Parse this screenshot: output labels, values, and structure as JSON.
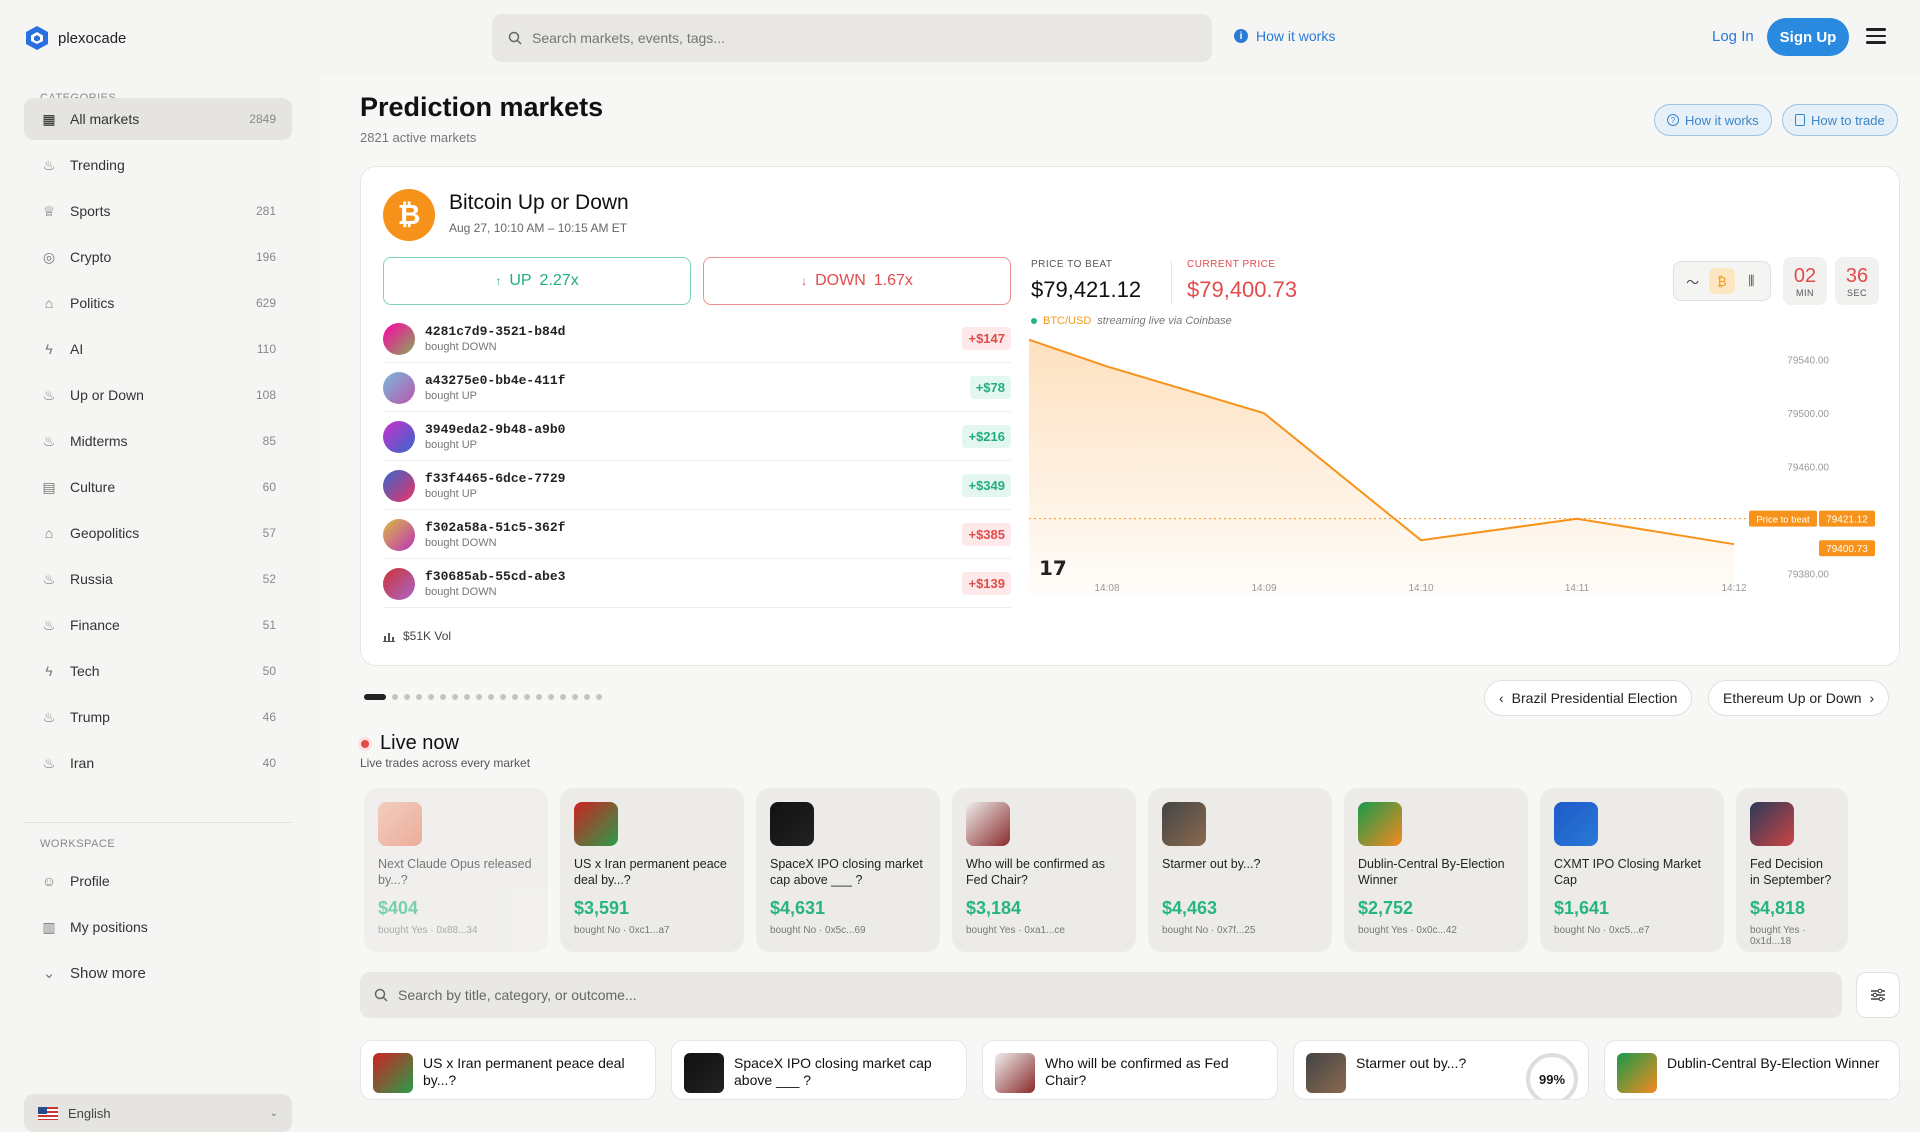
{
  "app": {
    "name": "plexocade"
  },
  "header": {
    "search_placeholder": "Search markets, events, tags...",
    "how_it_works": "How it works",
    "login": "Log In",
    "signup": "Sign Up"
  },
  "sidebar": {
    "categories_label": "CATEGORIES",
    "items": [
      {
        "label": "All markets",
        "count": "2849",
        "icon": "grid-icon"
      },
      {
        "label": "Trending",
        "count": "",
        "icon": "flame-icon"
      },
      {
        "label": "Sports",
        "count": "281",
        "icon": "trophy-icon"
      },
      {
        "label": "Crypto",
        "count": "196",
        "icon": "coins-icon"
      },
      {
        "label": "Politics",
        "count": "629",
        "icon": "landmark-icon"
      },
      {
        "label": "AI",
        "count": "110",
        "icon": "bolt-icon"
      },
      {
        "label": "Up or Down",
        "count": "108",
        "icon": "flame-icon"
      },
      {
        "label": "Midterms",
        "count": "85",
        "icon": "flame-icon"
      },
      {
        "label": "Culture",
        "count": "60",
        "icon": "film-icon"
      },
      {
        "label": "Geopolitics",
        "count": "57",
        "icon": "landmark-icon"
      },
      {
        "label": "Russia",
        "count": "52",
        "icon": "flame-icon"
      },
      {
        "label": "Finance",
        "count": "51",
        "icon": "flame-icon"
      },
      {
        "label": "Tech",
        "count": "50",
        "icon": "bolt-icon"
      },
      {
        "label": "Trump",
        "count": "46",
        "icon": "flame-icon"
      },
      {
        "label": "Iran",
        "count": "40",
        "icon": "flame-icon"
      }
    ],
    "workspace_label": "WORKSPACE",
    "workspace": [
      {
        "label": "Profile",
        "icon": "user-icon"
      },
      {
        "label": "My positions",
        "icon": "bar-chart-icon"
      },
      {
        "label": "Show more",
        "icon": "chevron-down-icon"
      }
    ],
    "language": "English"
  },
  "page": {
    "title": "Prediction markets",
    "subtitle": "2821 active markets",
    "how_it_works": "How it works",
    "how_to_trade": "How to trade"
  },
  "featured": {
    "title": "Bitcoin Up or Down",
    "date": "Aug 27, 10:10 AM – 10:15 AM ET",
    "up_label": "UP",
    "up_mult": "2.27x",
    "down_label": "DOWN",
    "down_mult": "1.67x",
    "trades": [
      {
        "id": "4281c7d9-3521-b84d",
        "action": "bought DOWN",
        "amount": "+$147",
        "side": "down"
      },
      {
        "id": "a43275e0-bb4e-411f",
        "action": "bought UP",
        "amount": "+$78",
        "side": "up"
      },
      {
        "id": "3949eda2-9b48-a9b0",
        "action": "bought UP",
        "amount": "+$216",
        "side": "up"
      },
      {
        "id": "f33f4465-6dce-7729",
        "action": "bought UP",
        "amount": "+$349",
        "side": "up"
      },
      {
        "id": "f302a58a-51c5-362f",
        "action": "bought DOWN",
        "amount": "+$385",
        "side": "down"
      },
      {
        "id": "f30685ab-55cd-abe3",
        "action": "bought DOWN",
        "amount": "+$139",
        "side": "down"
      }
    ],
    "volume": "$51K Vol",
    "price_to_beat_label": "PRICE TO BEAT",
    "price_to_beat": "$79,421.12",
    "current_price_label": "CURRENT PRICE",
    "current_price": "$79,400.73",
    "pair": "BTC/USD",
    "stream_note": "streaming live via Coinbase",
    "timer_min": "02",
    "timer_min_label": "MIN",
    "timer_sec": "36",
    "timer_sec_label": "SEC",
    "ptb_tag": "Price to beat",
    "ptb_tag_value": "79421.12",
    "cur_tag_value": "79400.73"
  },
  "chart_data": {
    "type": "area",
    "x": [
      "14:07.6",
      "14:08",
      "14:09",
      "14:10",
      "14:11",
      "14:12"
    ],
    "xticks": [
      "14:08",
      "14:09",
      "14:10",
      "14:11",
      "14:12"
    ],
    "y": [
      79555,
      79535,
      79500,
      79405,
      79421,
      79402
    ],
    "yticks": [
      "79540.00",
      "79500.00",
      "79460.00",
      "79380.00"
    ],
    "ylim": [
      79380,
      79560
    ],
    "price_to_beat": 79421.12,
    "color": "#f7931a"
  },
  "carousel": {
    "prev": "Brazil Presidential Election",
    "next": "Ethereum Up or Down",
    "dots": 19
  },
  "live": {
    "title": "Live now",
    "subtitle": "Live trades across every market",
    "cards": [
      {
        "q": "Next Claude Opus released by...?",
        "v": "$404",
        "by": "bought Yes · 0x88...34",
        "c1": "#f0b39e",
        "c2": "#e57c5c"
      },
      {
        "q": "US x Iran permanent peace deal by...?",
        "v": "$3,591",
        "by": "bought No · 0xc1...a7",
        "c1": "#c22",
        "c2": "#2a9d4a"
      },
      {
        "q": "SpaceX IPO closing market cap above ___ ?",
        "v": "$4,631",
        "by": "bought No · 0x5c...69",
        "c1": "#111",
        "c2": "#222"
      },
      {
        "q": "Who will be confirmed as Fed Chair?",
        "v": "$3,184",
        "by": "bought Yes · 0xa1...ce",
        "c1": "#eee",
        "c2": "#8a2a2a"
      },
      {
        "q": "Starmer out by...?",
        "v": "$4,463",
        "by": "bought No · 0x7f...25",
        "c1": "#444",
        "c2": "#8a6a50"
      },
      {
        "q": "Dublin-Central By-Election Winner",
        "v": "$2,752",
        "by": "bought Yes · 0x0c...42",
        "c1": "#179a4c",
        "c2": "#f58a1f"
      },
      {
        "q": "CXMT IPO Closing Market Cap",
        "v": "$1,641",
        "by": "bought No · 0xc5...e7",
        "c1": "#1e5ac8",
        "c2": "#2a7ad6"
      },
      {
        "q": "Fed Decision in September?",
        "v": "$4,818",
        "by": "bought Yes · 0x1d...18",
        "c1": "#2a3a5a",
        "c2": "#c44"
      }
    ]
  },
  "filter": {
    "placeholder": "Search by title, category, or outcome..."
  },
  "markets": [
    {
      "t": "US x Iran permanent peace deal by...?",
      "c1": "#c22",
      "c2": "#2a9d4a"
    },
    {
      "t": "SpaceX IPO closing market cap above ___ ?",
      "c1": "#111",
      "c2": "#222"
    },
    {
      "t": "Who will be confirmed as Fed Chair?",
      "c1": "#eee",
      "c2": "#8a2a2a"
    },
    {
      "t": "Starmer out by...?",
      "c1": "#444",
      "c2": "#8a6a50",
      "pct": "99%"
    },
    {
      "t": "Dublin-Central By-Election Winner",
      "c1": "#179a4c",
      "c2": "#f58a1f"
    }
  ]
}
